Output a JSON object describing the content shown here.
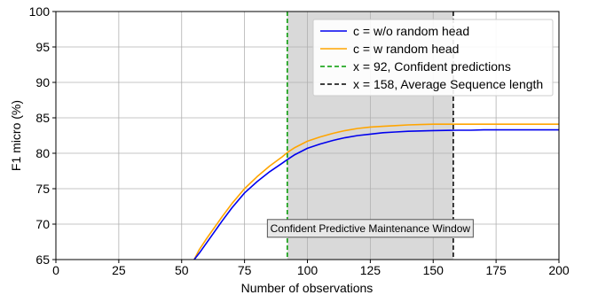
{
  "chart_data": {
    "type": "line",
    "title": "",
    "xlabel": "Number of observations",
    "ylabel": "F1 micro (%)",
    "xlim": [
      0,
      200
    ],
    "ylim": [
      65,
      100
    ],
    "x_ticks": [
      0,
      25,
      50,
      75,
      100,
      125,
      150,
      175,
      200
    ],
    "y_ticks": [
      65,
      70,
      75,
      80,
      85,
      90,
      95,
      100
    ],
    "grid": true,
    "legend_placement": "top-right",
    "series": [
      {
        "name": "c = w/o random head",
        "color": "#0000ee",
        "x": [
          55,
          57,
          60,
          63,
          66,
          70,
          75,
          80,
          85,
          90,
          92,
          95,
          100,
          105,
          110,
          115,
          120,
          125,
          130,
          135,
          140,
          145,
          150,
          155,
          160,
          165,
          170,
          175,
          180,
          185,
          190,
          195,
          200
        ],
        "y": [
          65.0,
          65.9,
          67.4,
          68.9,
          70.4,
          72.3,
          74.4,
          76.0,
          77.4,
          78.6,
          79.1,
          79.8,
          80.7,
          81.3,
          81.8,
          82.2,
          82.5,
          82.7,
          82.9,
          83.0,
          83.1,
          83.15,
          83.2,
          83.22,
          83.25,
          83.25,
          83.3,
          83.3,
          83.3,
          83.3,
          83.3,
          83.3,
          83.3
        ]
      },
      {
        "name": "c = w random head",
        "color": "#ffa500",
        "x": [
          55,
          57,
          60,
          63,
          66,
          70,
          75,
          80,
          85,
          90,
          92,
          95,
          100,
          105,
          110,
          115,
          120,
          125,
          130,
          135,
          140,
          145,
          150,
          155,
          160,
          165,
          170,
          175,
          180,
          185,
          190,
          195,
          200
        ],
        "y": [
          65.0,
          66.4,
          68.0,
          69.5,
          71.0,
          72.9,
          75.0,
          76.7,
          78.2,
          79.5,
          80.1,
          80.8,
          81.7,
          82.3,
          82.8,
          83.2,
          83.5,
          83.7,
          83.8,
          83.9,
          84.0,
          84.05,
          84.1,
          84.1,
          84.1,
          84.1,
          84.1,
          84.1,
          84.1,
          84.1,
          84.1,
          84.1,
          84.1
        ]
      }
    ],
    "vlines": [
      {
        "x": 92,
        "label": "x = 92, Confident predictions",
        "color": "#009900"
      },
      {
        "x": 158,
        "label": "x = 158, Average Sequence length",
        "color": "#000000"
      }
    ],
    "shaded_region": {
      "x_start": 92,
      "x_end": 158,
      "color": "#d9d9d9",
      "label": "Confident Predictive Maintenance Window",
      "label_y": 69.4
    }
  }
}
